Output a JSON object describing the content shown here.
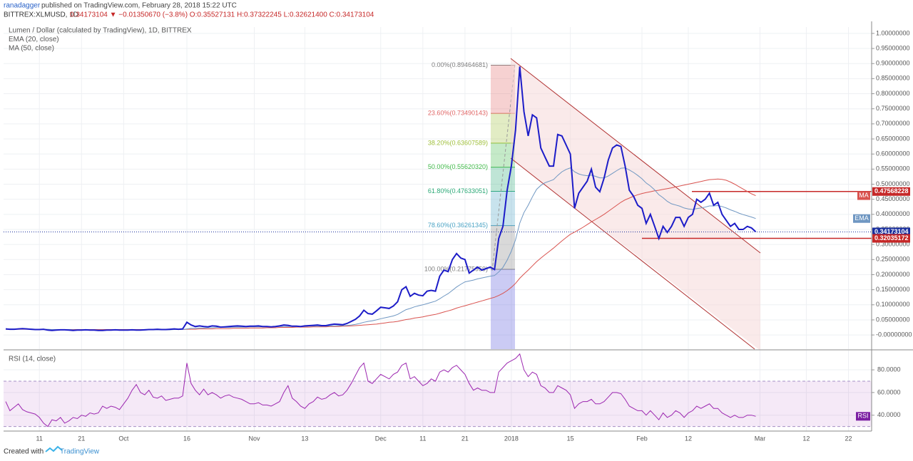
{
  "header": {
    "author": "ranadagger",
    "text": "published on TradingView.com, February 28, 2018 15:22 UTC",
    "symbol": "BITTREX:XLMUSD, 1D",
    "quote": "0.34173104 ▼ −0.01350670 (−3.8%) O:0.35527131 H:0.37322245 L:0.32621400 C:0.34173104"
  },
  "footer": {
    "text": "Created with",
    "brand": "TradingView"
  },
  "chart_data": {
    "type": "line",
    "grid": true,
    "categories": [
      null,
      null,
      null,
      null,
      null,
      null,
      null,
      null,
      "11",
      null,
      null,
      null,
      null,
      null,
      null,
      null,
      null,
      null,
      "21",
      null,
      null,
      null,
      null,
      null,
      null,
      null,
      null,
      null,
      "Oct",
      null,
      null,
      null,
      null,
      null,
      null,
      null,
      null,
      null,
      null,
      null,
      null,
      null,
      null,
      "16",
      null,
      null,
      null,
      null,
      null,
      null,
      null,
      null,
      null,
      null,
      null,
      null,
      null,
      null,
      null,
      "Nov",
      null,
      null,
      null,
      null,
      null,
      null,
      null,
      null,
      null,
      null,
      null,
      "13",
      null,
      null,
      null,
      null,
      null,
      null,
      null,
      null,
      null,
      null,
      null,
      null,
      null,
      null,
      null,
      null,
      null,
      "Dec",
      null,
      null,
      null,
      null,
      null,
      null,
      null,
      null,
      null,
      "11",
      null,
      null,
      null,
      null,
      null,
      null,
      null,
      null,
      null,
      "21",
      null,
      null,
      null,
      null,
      null,
      null,
      null,
      null,
      null,
      null,
      "2018",
      null,
      null,
      null,
      null,
      null,
      null,
      null,
      null,
      null,
      null,
      null,
      null,
      null,
      "15",
      null,
      null,
      null,
      null,
      null,
      null,
      null,
      null,
      null,
      null,
      null,
      null,
      null,
      null,
      null,
      null,
      "Feb",
      null,
      null,
      null,
      null,
      null,
      null,
      null,
      null,
      null,
      null,
      "12",
      null,
      null,
      null,
      null,
      null,
      null,
      null,
      null,
      null,
      null,
      null,
      null,
      null,
      null,
      null,
      null,
      "Mar",
      null,
      null,
      null,
      null,
      null,
      null,
      null,
      null,
      null,
      null,
      "12",
      null,
      null,
      null,
      null,
      null,
      null,
      null,
      null,
      null,
      "22",
      null,
      null,
      null,
      null,
      null
    ],
    "series": [
      {
        "name": "Lumen / Dollar (calculated by TradingView), 1D, BITTREX",
        "color": "#1c1cc8",
        "values": [
          0.02,
          0.019,
          0.019,
          0.02,
          0.021,
          0.02,
          0.019,
          0.018,
          0.018,
          0.019,
          0.016,
          0.015,
          0.016,
          0.017,
          0.017,
          0.016,
          0.015,
          0.016,
          0.016,
          0.017,
          0.016,
          0.016,
          0.015,
          0.015,
          0.016,
          0.016,
          0.017,
          0.016,
          0.016,
          0.016,
          0.017,
          0.016,
          0.016,
          0.017,
          0.018,
          0.018,
          0.019,
          0.018,
          0.018,
          0.019,
          0.02,
          0.019,
          0.02,
          0.042,
          0.033,
          0.028,
          0.03,
          0.028,
          0.027,
          0.03,
          0.029,
          0.026,
          0.027,
          0.028,
          0.029,
          0.03,
          0.029,
          0.028,
          0.029,
          0.029,
          0.03,
          0.028,
          0.028,
          0.027,
          0.028,
          0.03,
          0.033,
          0.032,
          0.029,
          0.029,
          0.028,
          0.03,
          0.031,
          0.032,
          0.033,
          0.031,
          0.031,
          0.034,
          0.036,
          0.035,
          0.034,
          0.038,
          0.045,
          0.052,
          0.063,
          0.082,
          0.071,
          0.069,
          0.08,
          0.092,
          0.09,
          0.088,
          0.096,
          0.11,
          0.15,
          0.16,
          0.128,
          0.138,
          0.132,
          0.13,
          0.145,
          0.148,
          0.145,
          0.195,
          0.215,
          0.21,
          0.25,
          0.27,
          0.255,
          0.25,
          0.205,
          0.215,
          0.225,
          0.215,
          0.22,
          0.225,
          0.217,
          0.32,
          0.36,
          0.48,
          0.56,
          0.68,
          0.89,
          0.74,
          0.66,
          0.73,
          0.72,
          0.62,
          0.59,
          0.56,
          0.56,
          0.665,
          0.66,
          0.63,
          0.6,
          0.42,
          0.47,
          0.49,
          0.51,
          0.55,
          0.49,
          0.475,
          0.52,
          0.58,
          0.62,
          0.63,
          0.625,
          0.56,
          0.48,
          0.46,
          0.43,
          0.42,
          0.37,
          0.4,
          0.36,
          0.32,
          0.36,
          0.34,
          0.36,
          0.39,
          0.39,
          0.36,
          0.39,
          0.4,
          0.45,
          0.44,
          0.45,
          0.47,
          0.43,
          0.44,
          0.4,
          0.38,
          0.36,
          0.37,
          0.35,
          0.35,
          0.36,
          0.355,
          0.342,
          null,
          null,
          null,
          null,
          null,
          null,
          null,
          null,
          null,
          null,
          null,
          null,
          null,
          null,
          null,
          null,
          null,
          null,
          null,
          null,
          null,
          null,
          null,
          null,
          null,
          null,
          null
        ]
      },
      {
        "name": "EMA (20, close)",
        "tag": "EMA",
        "color": "#6f97c2",
        "values": [
          0.02,
          0.02,
          0.02,
          0.02,
          0.02,
          0.02,
          0.02,
          0.019,
          0.019,
          0.019,
          0.019,
          0.018,
          0.018,
          0.018,
          0.018,
          0.018,
          0.017,
          0.017,
          0.017,
          0.017,
          0.017,
          0.017,
          0.016,
          0.016,
          0.016,
          0.016,
          0.016,
          0.016,
          0.016,
          0.016,
          0.016,
          0.016,
          0.016,
          0.016,
          0.017,
          0.017,
          0.017,
          0.017,
          0.017,
          0.017,
          0.018,
          0.018,
          0.018,
          0.02,
          0.022,
          0.022,
          0.023,
          0.023,
          0.024,
          0.024,
          0.025,
          0.025,
          0.025,
          0.025,
          0.026,
          0.026,
          0.026,
          0.026,
          0.027,
          0.027,
          0.027,
          0.027,
          0.027,
          0.027,
          0.027,
          0.028,
          0.028,
          0.028,
          0.028,
          0.028,
          0.028,
          0.028,
          0.029,
          0.029,
          0.029,
          0.029,
          0.029,
          0.03,
          0.03,
          0.031,
          0.031,
          0.032,
          0.033,
          0.035,
          0.038,
          0.042,
          0.045,
          0.047,
          0.05,
          0.054,
          0.057,
          0.06,
          0.063,
          0.068,
          0.076,
          0.084,
          0.088,
          0.093,
          0.097,
          0.1,
          0.104,
          0.108,
          0.112,
          0.12,
          0.129,
          0.137,
          0.148,
          0.159,
          0.168,
          0.176,
          0.179,
          0.182,
          0.186,
          0.189,
          0.192,
          0.195,
          0.197,
          0.209,
          0.224,
          0.248,
          0.278,
          0.316,
          0.371,
          0.406,
          0.43,
          0.458,
          0.483,
          0.496,
          0.505,
          0.51,
          0.515,
          0.529,
          0.541,
          0.549,
          0.554,
          0.541,
          0.534,
          0.53,
          0.528,
          0.53,
          0.526,
          0.521,
          0.521,
          0.527,
          0.536,
          0.545,
          0.553,
          0.554,
          0.547,
          0.539,
          0.529,
          0.518,
          0.504,
          0.494,
          0.481,
          0.465,
          0.455,
          0.443,
          0.435,
          0.431,
          0.427,
          0.421,
          0.418,
          0.416,
          0.419,
          0.421,
          0.424,
          0.428,
          0.428,
          0.429,
          0.426,
          0.421,
          0.415,
          0.41,
          0.404,
          0.399,
          0.395,
          0.391,
          0.386,
          null,
          null,
          null,
          null,
          null,
          null,
          null,
          null,
          null,
          null,
          null,
          null,
          null,
          null,
          null,
          null,
          null,
          null,
          null,
          null,
          null,
          null,
          null,
          null,
          null,
          null,
          null
        ]
      },
      {
        "name": "MA (50, close)",
        "tag": "MA",
        "color": "#d9534f",
        "values": [
          0.019,
          0.019,
          0.019,
          0.019,
          0.019,
          0.019,
          0.019,
          0.019,
          0.019,
          0.019,
          0.018,
          0.018,
          0.018,
          0.018,
          0.018,
          0.018,
          0.018,
          0.018,
          0.018,
          0.018,
          0.018,
          0.018,
          0.018,
          0.018,
          0.018,
          0.018,
          0.018,
          0.018,
          0.018,
          0.018,
          0.018,
          0.018,
          0.018,
          0.018,
          0.018,
          0.018,
          0.018,
          0.018,
          0.018,
          0.018,
          0.018,
          0.018,
          0.018,
          0.019,
          0.019,
          0.019,
          0.02,
          0.02,
          0.02,
          0.02,
          0.021,
          0.021,
          0.021,
          0.021,
          0.022,
          0.022,
          0.022,
          0.022,
          0.023,
          0.023,
          0.023,
          0.023,
          0.024,
          0.024,
          0.024,
          0.025,
          0.025,
          0.025,
          0.025,
          0.026,
          0.026,
          0.026,
          0.026,
          0.027,
          0.027,
          0.027,
          0.027,
          0.028,
          0.028,
          0.028,
          0.029,
          0.029,
          0.03,
          0.031,
          0.032,
          0.033,
          0.034,
          0.035,
          0.036,
          0.038,
          0.04,
          0.042,
          0.043,
          0.045,
          0.048,
          0.051,
          0.053,
          0.056,
          0.058,
          0.06,
          0.063,
          0.066,
          0.068,
          0.072,
          0.076,
          0.08,
          0.084,
          0.089,
          0.093,
          0.097,
          0.101,
          0.105,
          0.109,
          0.113,
          0.117,
          0.121,
          0.125,
          0.131,
          0.138,
          0.147,
          0.158,
          0.171,
          0.188,
          0.202,
          0.215,
          0.229,
          0.243,
          0.255,
          0.266,
          0.277,
          0.288,
          0.3,
          0.312,
          0.323,
          0.334,
          0.341,
          0.349,
          0.357,
          0.366,
          0.375,
          0.383,
          0.391,
          0.4,
          0.41,
          0.42,
          0.43,
          0.44,
          0.448,
          0.454,
          0.46,
          0.465,
          0.469,
          0.472,
          0.475,
          0.478,
          0.48,
          0.483,
          0.485,
          0.488,
          0.491,
          0.494,
          0.497,
          0.5,
          0.503,
          0.506,
          0.509,
          0.512,
          0.515,
          0.516,
          0.517,
          0.516,
          0.513,
          0.507,
          0.5,
          0.492,
          0.484,
          0.476,
          0.468,
          0.462,
          null,
          null,
          null,
          null,
          null,
          null,
          null,
          null,
          null,
          null,
          null,
          null,
          null,
          null,
          null,
          null,
          null,
          null,
          null,
          null,
          null,
          null,
          null,
          null,
          null,
          null,
          null
        ]
      }
    ],
    "ylim": [
      -0.047,
      1.021
    ],
    "yticks": [
      {
        "value": 1,
        "label": "1.00000000"
      },
      {
        "value": 0.95,
        "label": "0.95000000"
      },
      {
        "value": 0.9,
        "label": "0.90000000"
      },
      {
        "value": 0.85,
        "label": "0.85000000"
      },
      {
        "value": 0.8,
        "label": "0.80000000"
      },
      {
        "value": 0.75,
        "label": "0.75000000"
      },
      {
        "value": 0.7,
        "label": "0.70000000"
      },
      {
        "value": 0.65,
        "label": "0.65000000"
      },
      {
        "value": 0.6,
        "label": "0.60000000"
      },
      {
        "value": 0.55,
        "label": "0.55000000"
      },
      {
        "value": 0.5,
        "label": "0.50000000"
      },
      {
        "value": 0.45,
        "label": "0.45000000"
      },
      {
        "value": 0.4,
        "label": "0.40000000"
      },
      {
        "value": 0.35,
        "label": "0.35000000"
      },
      {
        "value": 0.3,
        "label": "0.30000000"
      },
      {
        "value": 0.25,
        "label": "0.25000000"
      },
      {
        "value": 0.2,
        "label": "0.20000000"
      },
      {
        "value": 0.15,
        "label": "0.15000000"
      },
      {
        "value": 0.1,
        "label": "0.10000000"
      },
      {
        "value": 0.05,
        "label": "0.05000000"
      },
      {
        "value": 0,
        "label": "-0.00000000"
      }
    ],
    "fib_levels": [
      {
        "label": "0.00%(0.89464681)",
        "value": 0.89464681,
        "color": "#808080"
      },
      {
        "label": "23.60%(0.73490143)",
        "value": 0.73490143,
        "color": "#e06666"
      },
      {
        "label": "38.20%(0.63607589)",
        "value": 0.63607589,
        "color": "#9fbf3a"
      },
      {
        "label": "50.00%(0.55620320)",
        "value": 0.5562032,
        "color": "#3fb948"
      },
      {
        "label": "61.80%(0.47633051)",
        "value": 0.47633051,
        "color": "#2aa876"
      },
      {
        "label": "78.60%(0.36261345)",
        "value": 0.36261345,
        "color": "#4aa3c4"
      },
      {
        "label": "100.00%(0.21775959)",
        "value": 0.21775959,
        "color": "#808080"
      }
    ],
    "price_markers": [
      {
        "value": 0.47568228,
        "color": "#c62828"
      },
      {
        "value": 0.34173104,
        "color": "#1a2f9e"
      },
      {
        "value": 0.32035172,
        "color": "#c62828"
      }
    ],
    "rsi": {
      "name": "RSI (14, close)",
      "tag": "RSI",
      "color": "#9c27b0",
      "ylim": [
        26,
        97
      ],
      "band": [
        30,
        70
      ],
      "yticks": [
        {
          "value": 80,
          "label": "80.0000"
        },
        {
          "value": 60,
          "label": "60.0000"
        },
        {
          "value": 40,
          "label": "40.0000"
        }
      ],
      "values": [
        52,
        44,
        47,
        50,
        45,
        43,
        42,
        41,
        38,
        33,
        30,
        36,
        35,
        38,
        33,
        35,
        38,
        37,
        40,
        39,
        42,
        41,
        42,
        48,
        46,
        48,
        47,
        45,
        50,
        55,
        62,
        67,
        60,
        58,
        62,
        56,
        55,
        57,
        53,
        54,
        55,
        55,
        57,
        86,
        68,
        62,
        58,
        63,
        58,
        60,
        58,
        55,
        57,
        58,
        56,
        55,
        54,
        52,
        50,
        50,
        51,
        49,
        49,
        48,
        50,
        52,
        60,
        66,
        55,
        52,
        48,
        46,
        50,
        52,
        56,
        54,
        55,
        58,
        60,
        57,
        58,
        62,
        68,
        75,
        82,
        86,
        70,
        68,
        72,
        76,
        74,
        72,
        76,
        78,
        84,
        86,
        72,
        74,
        70,
        66,
        68,
        72,
        70,
        78,
        80,
        78,
        82,
        84,
        80,
        76,
        68,
        62,
        64,
        62,
        62,
        60,
        60,
        78,
        82,
        86,
        88,
        90,
        94,
        80,
        74,
        78,
        76,
        66,
        64,
        60,
        60,
        66,
        64,
        62,
        58,
        46,
        50,
        52,
        52,
        54,
        50,
        50,
        52,
        56,
        60,
        60,
        59,
        54,
        48,
        46,
        44,
        44,
        40,
        44,
        40,
        36,
        42,
        38,
        40,
        44,
        42,
        38,
        42,
        44,
        48,
        46,
        48,
        50,
        46,
        46,
        42,
        40,
        38,
        40,
        38,
        38,
        40,
        40,
        39,
        null,
        null,
        null,
        null,
        null,
        null,
        null,
        null,
        null,
        null,
        null,
        null,
        null,
        null,
        null,
        null,
        null,
        null,
        null,
        null,
        null,
        null,
        null,
        null,
        null,
        null,
        null
      ]
    }
  }
}
